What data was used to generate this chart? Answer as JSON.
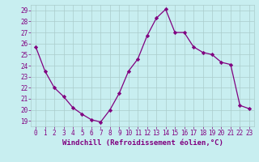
{
  "x": [
    0,
    1,
    2,
    3,
    4,
    5,
    6,
    7,
    8,
    9,
    10,
    11,
    12,
    13,
    14,
    15,
    16,
    17,
    18,
    19,
    20,
    21,
    22,
    23
  ],
  "y": [
    25.7,
    23.5,
    22.0,
    21.2,
    20.2,
    19.6,
    19.1,
    18.9,
    20.0,
    21.5,
    23.5,
    24.6,
    26.7,
    28.3,
    29.1,
    27.0,
    27.0,
    25.7,
    25.2,
    25.0,
    24.3,
    24.1,
    20.4,
    20.1
  ],
  "line_color": "#800080",
  "marker": "D",
  "marker_size": 2.2,
  "bg_color": "#c8eef0",
  "grid_color": "#aacccc",
  "xlabel": "Windchill (Refroidissement éolien,°C)",
  "xlim": [
    -0.5,
    23.5
  ],
  "ylim": [
    18.5,
    29.5
  ],
  "yticks": [
    19,
    20,
    21,
    22,
    23,
    24,
    25,
    26,
    27,
    28,
    29
  ],
  "xticks": [
    0,
    1,
    2,
    3,
    4,
    5,
    6,
    7,
    8,
    9,
    10,
    11,
    12,
    13,
    14,
    15,
    16,
    17,
    18,
    19,
    20,
    21,
    22,
    23
  ],
  "tick_color": "#800080",
  "tick_fontsize": 5.5,
  "xlabel_fontsize": 6.5,
  "linewidth": 0.9
}
